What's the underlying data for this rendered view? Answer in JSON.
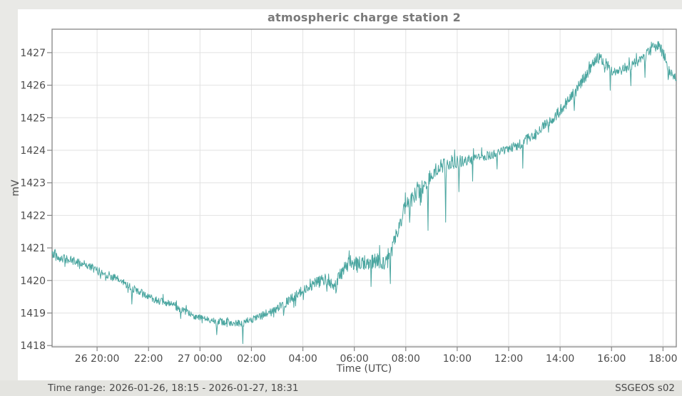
{
  "page": {
    "background": "#e9e9e6",
    "panel_background": "#ffffff"
  },
  "chart_data": {
    "type": "line",
    "title": "atmospheric charge station 2",
    "xlabel": "Time (UTC)",
    "ylabel": "mV",
    "series_name": "atmospheric charge station 2 (mV)",
    "line_color": "#4ba6a0",
    "grid_color": "#e2e2e2",
    "frame_color": "#858585",
    "tick_text_color": "#4d4d4d",
    "grid": true,
    "x_range_hours": 24.267,
    "x_start": "2026-01-26 18:15",
    "x_end": "2026-01-27 18:31",
    "x_ticks": [
      {
        "hour": 1.75,
        "label": "26 20:00"
      },
      {
        "hour": 3.75,
        "label": "22:00"
      },
      {
        "hour": 5.75,
        "label": "27 00:00"
      },
      {
        "hour": 7.75,
        "label": "02:00"
      },
      {
        "hour": 9.75,
        "label": "04:00"
      },
      {
        "hour": 11.75,
        "label": "06:00"
      },
      {
        "hour": 13.75,
        "label": "08:00"
      },
      {
        "hour": 15.75,
        "label": "10:00"
      },
      {
        "hour": 17.75,
        "label": "12:00"
      },
      {
        "hour": 19.75,
        "label": "14:00"
      },
      {
        "hour": 21.75,
        "label": "16:00"
      },
      {
        "hour": 23.75,
        "label": "18:00"
      }
    ],
    "y_ticks": [
      1418,
      1419,
      1420,
      1421,
      1422,
      1423,
      1424,
      1425,
      1426,
      1427
    ],
    "ylim": [
      1417.96,
      1427.72
    ],
    "sample_minutes": 1,
    "noise_seed": 42,
    "baseline_anchors": [
      [
        0.0,
        1420.8
      ],
      [
        0.3,
        1420.7
      ],
      [
        0.8,
        1420.6
      ],
      [
        1.3,
        1420.5
      ],
      [
        1.75,
        1420.3
      ],
      [
        2.25,
        1420.15
      ],
      [
        2.75,
        1419.95
      ],
      [
        3.25,
        1419.7
      ],
      [
        3.75,
        1419.5
      ],
      [
        4.25,
        1419.35
      ],
      [
        4.75,
        1419.22
      ],
      [
        5.25,
        1419.0
      ],
      [
        5.75,
        1418.85
      ],
      [
        6.25,
        1418.78
      ],
      [
        6.75,
        1418.72
      ],
      [
        7.3,
        1418.68
      ],
      [
        7.75,
        1418.78
      ],
      [
        8.25,
        1418.95
      ],
      [
        8.75,
        1419.12
      ],
      [
        9.25,
        1419.4
      ],
      [
        9.75,
        1419.68
      ],
      [
        10.3,
        1419.95
      ],
      [
        10.7,
        1420.05
      ],
      [
        11.0,
        1419.85
      ],
      [
        11.3,
        1420.3
      ],
      [
        11.6,
        1420.55
      ],
      [
        12.0,
        1420.5
      ],
      [
        12.5,
        1420.62
      ],
      [
        12.9,
        1420.55
      ],
      [
        13.2,
        1420.95
      ],
      [
        13.5,
        1421.7
      ],
      [
        13.75,
        1422.3
      ],
      [
        14.1,
        1422.6
      ],
      [
        14.5,
        1422.95
      ],
      [
        14.8,
        1423.3
      ],
      [
        15.1,
        1423.5
      ],
      [
        15.5,
        1423.6
      ],
      [
        15.75,
        1423.65
      ],
      [
        16.25,
        1423.72
      ],
      [
        16.75,
        1423.8
      ],
      [
        17.25,
        1423.9
      ],
      [
        17.75,
        1424.05
      ],
      [
        18.25,
        1424.2
      ],
      [
        18.75,
        1424.5
      ],
      [
        19.25,
        1424.85
      ],
      [
        19.75,
        1425.2
      ],
      [
        20.25,
        1425.7
      ],
      [
        20.75,
        1426.3
      ],
      [
        21.1,
        1426.75
      ],
      [
        21.3,
        1426.85
      ],
      [
        21.6,
        1426.6
      ],
      [
        21.9,
        1426.35
      ],
      [
        22.2,
        1426.5
      ],
      [
        22.6,
        1426.65
      ],
      [
        23.0,
        1426.85
      ],
      [
        23.3,
        1427.1
      ],
      [
        23.55,
        1427.25
      ],
      [
        23.8,
        1426.9
      ],
      [
        24.0,
        1426.4
      ],
      [
        24.267,
        1426.15
      ]
    ],
    "noise_anchors": [
      [
        0.0,
        0.14
      ],
      [
        3.0,
        0.12
      ],
      [
        6.0,
        0.1
      ],
      [
        8.0,
        0.12
      ],
      [
        10.0,
        0.18
      ],
      [
        11.5,
        0.22
      ],
      [
        13.0,
        0.25
      ],
      [
        14.5,
        0.24
      ],
      [
        15.5,
        0.2
      ],
      [
        16.5,
        0.14
      ],
      [
        17.5,
        0.13
      ],
      [
        18.5,
        0.16
      ],
      [
        19.5,
        0.18
      ],
      [
        21.0,
        0.18
      ],
      [
        22.0,
        0.15
      ],
      [
        23.0,
        0.17
      ],
      [
        24.267,
        0.16
      ]
    ],
    "spikes": [
      [
        0.12,
        0.28
      ],
      [
        3.1,
        -0.5
      ],
      [
        5.0,
        -0.3
      ],
      [
        6.4,
        -0.42
      ],
      [
        7.42,
        -0.5
      ],
      [
        9.0,
        -0.3
      ],
      [
        11.05,
        -0.45
      ],
      [
        11.55,
        0.42
      ],
      [
        12.4,
        -0.55
      ],
      [
        13.15,
        -0.95
      ],
      [
        13.9,
        -0.85
      ],
      [
        14.35,
        -0.6
      ],
      [
        14.62,
        -1.5
      ],
      [
        15.3,
        -1.75
      ],
      [
        15.82,
        -1.0
      ],
      [
        16.35,
        -0.65
      ],
      [
        17.3,
        -0.4
      ],
      [
        18.3,
        -0.5
      ],
      [
        19.3,
        -0.45
      ],
      [
        20.3,
        -0.6
      ],
      [
        21.7,
        -0.55
      ],
      [
        22.5,
        -0.85
      ],
      [
        23.05,
        -0.55
      ],
      [
        23.95,
        -0.5
      ]
    ]
  },
  "status_bar": {
    "time_range_label": "Time range:",
    "time_range_value": "2026-01-26, 18:15 - 2026-01-27, 18:31",
    "source_label": "SSGEOS s02"
  }
}
